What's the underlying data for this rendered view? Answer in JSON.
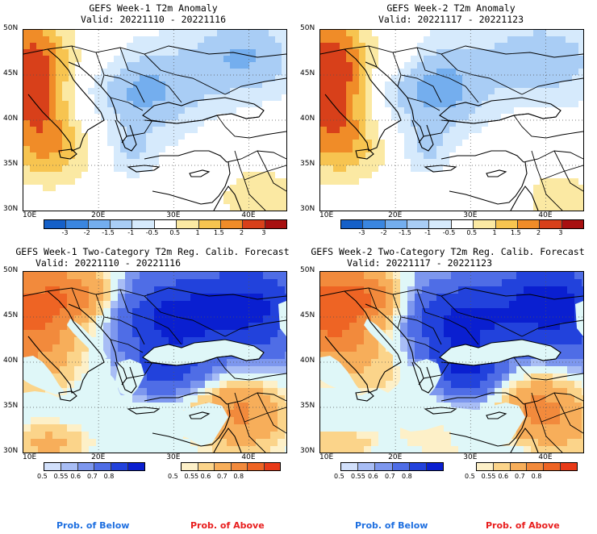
{
  "panels": [
    {
      "title": "GEFS Week-1 T2m Anomaly",
      "valid": "Valid: 20221110 - 20221116"
    },
    {
      "title": "GEFS Week-2 T2m Anomaly",
      "valid": "Valid: 20221117 - 20221123"
    },
    {
      "title": "GEFS Week-1 Two-Category T2m Reg. Calib. Forecast",
      "valid": "Valid: 20221110 - 20221116"
    },
    {
      "title": "GEFS Week-2 Two-Category T2m Reg. Calib. Forecast",
      "valid": "Valid: 20221117 - 20221123"
    }
  ],
  "lat_labels": [
    "50N",
    "45N",
    "40N",
    "35N",
    "30N"
  ],
  "lon_labels": [
    "10E",
    "20E",
    "30E",
    "40E"
  ],
  "anomaly_colorbar": {
    "labels": [
      "-3",
      "-2",
      "-1.5",
      "-1",
      "-0.5",
      "0.5",
      "1",
      "1.5",
      "2",
      "3"
    ],
    "colors": [
      "#1560c8",
      "#3a86e0",
      "#74aeee",
      "#a9cdf5",
      "#d6eafc",
      "#ffffff",
      "#fbe9a3",
      "#f7c450",
      "#f08c28",
      "#d8401a",
      "#a81010"
    ]
  },
  "below_colorbar": {
    "labels": [
      "0.5",
      "0.55",
      "0.6",
      "0.7",
      "0.8"
    ],
    "colors": [
      "#d2e0fb",
      "#a8bdf5",
      "#7d97ee",
      "#4f6de6",
      "#2242dc",
      "#0a1fd0"
    ]
  },
  "above_colorbar": {
    "labels": [
      "0.5",
      "0.55",
      "0.6",
      "0.7",
      "0.8"
    ],
    "colors": [
      "#fdf0c8",
      "#fbd48a",
      "#f7ae5a",
      "#f28a3c",
      "#ee6424",
      "#e83a18"
    ]
  },
  "legend": {
    "below": "Prob. of Below",
    "above": "Prob. of Above"
  },
  "colors": {
    "below_text": "#1e6fe0",
    "above_text": "#e81e1e"
  }
}
